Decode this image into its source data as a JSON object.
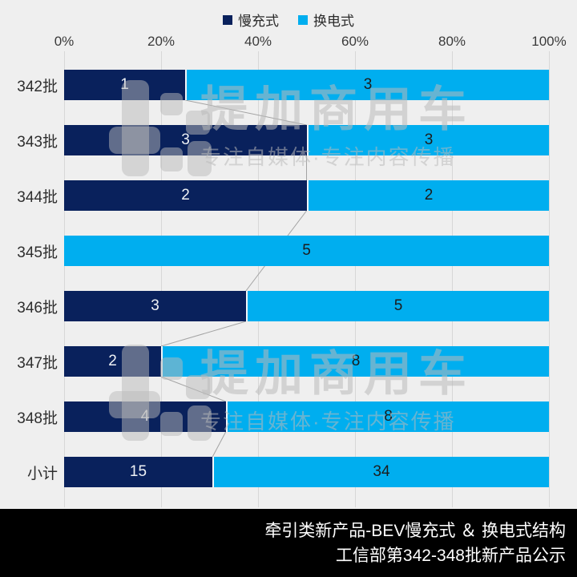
{
  "legend": {
    "items": [
      {
        "label": "慢充式",
        "color": "#09215c"
      },
      {
        "label": "换电式",
        "color": "#00aeef"
      }
    ]
  },
  "axis": {
    "tick_labels": [
      "0%",
      "20%",
      "40%",
      "60%",
      "80%",
      "100%"
    ]
  },
  "chart_data": {
    "type": "bar",
    "orientation": "horizontal",
    "stacking": "100%",
    "categories": [
      "342批",
      "343批",
      "344批",
      "345批",
      "346批",
      "347批",
      "348批",
      "小计"
    ],
    "series": [
      {
        "name": "慢充式",
        "color": "#09215c",
        "label_color": "#eef1f5",
        "values": [
          1,
          3,
          2,
          0,
          3,
          2,
          4,
          15
        ]
      },
      {
        "name": "换电式",
        "color": "#00aeef",
        "label_color": "#1c1c1c",
        "values": [
          3,
          3,
          2,
          5,
          5,
          8,
          8,
          34
        ]
      }
    ],
    "x_ticks": [
      "0%",
      "20%",
      "40%",
      "60%",
      "80%",
      "100%"
    ],
    "xlim_percent": [
      0,
      100
    ],
    "gridlines": true,
    "legend_position": "top",
    "series_connector_lines": true
  },
  "watermark": {
    "title": "提加商用车",
    "subtitle": "专注自媒体·专注内容传播"
  },
  "footer": {
    "line1": "牵引类新产品-BEV慢充式 ＆ 换电式结构",
    "line2": "工信部第342-348批新产品公示"
  },
  "colors": {
    "background": "#efefef",
    "gridline": "#d7d7d7",
    "connector": "#a3a3a3",
    "footer_background": "#000000",
    "footer_text": "#ffffff"
  }
}
